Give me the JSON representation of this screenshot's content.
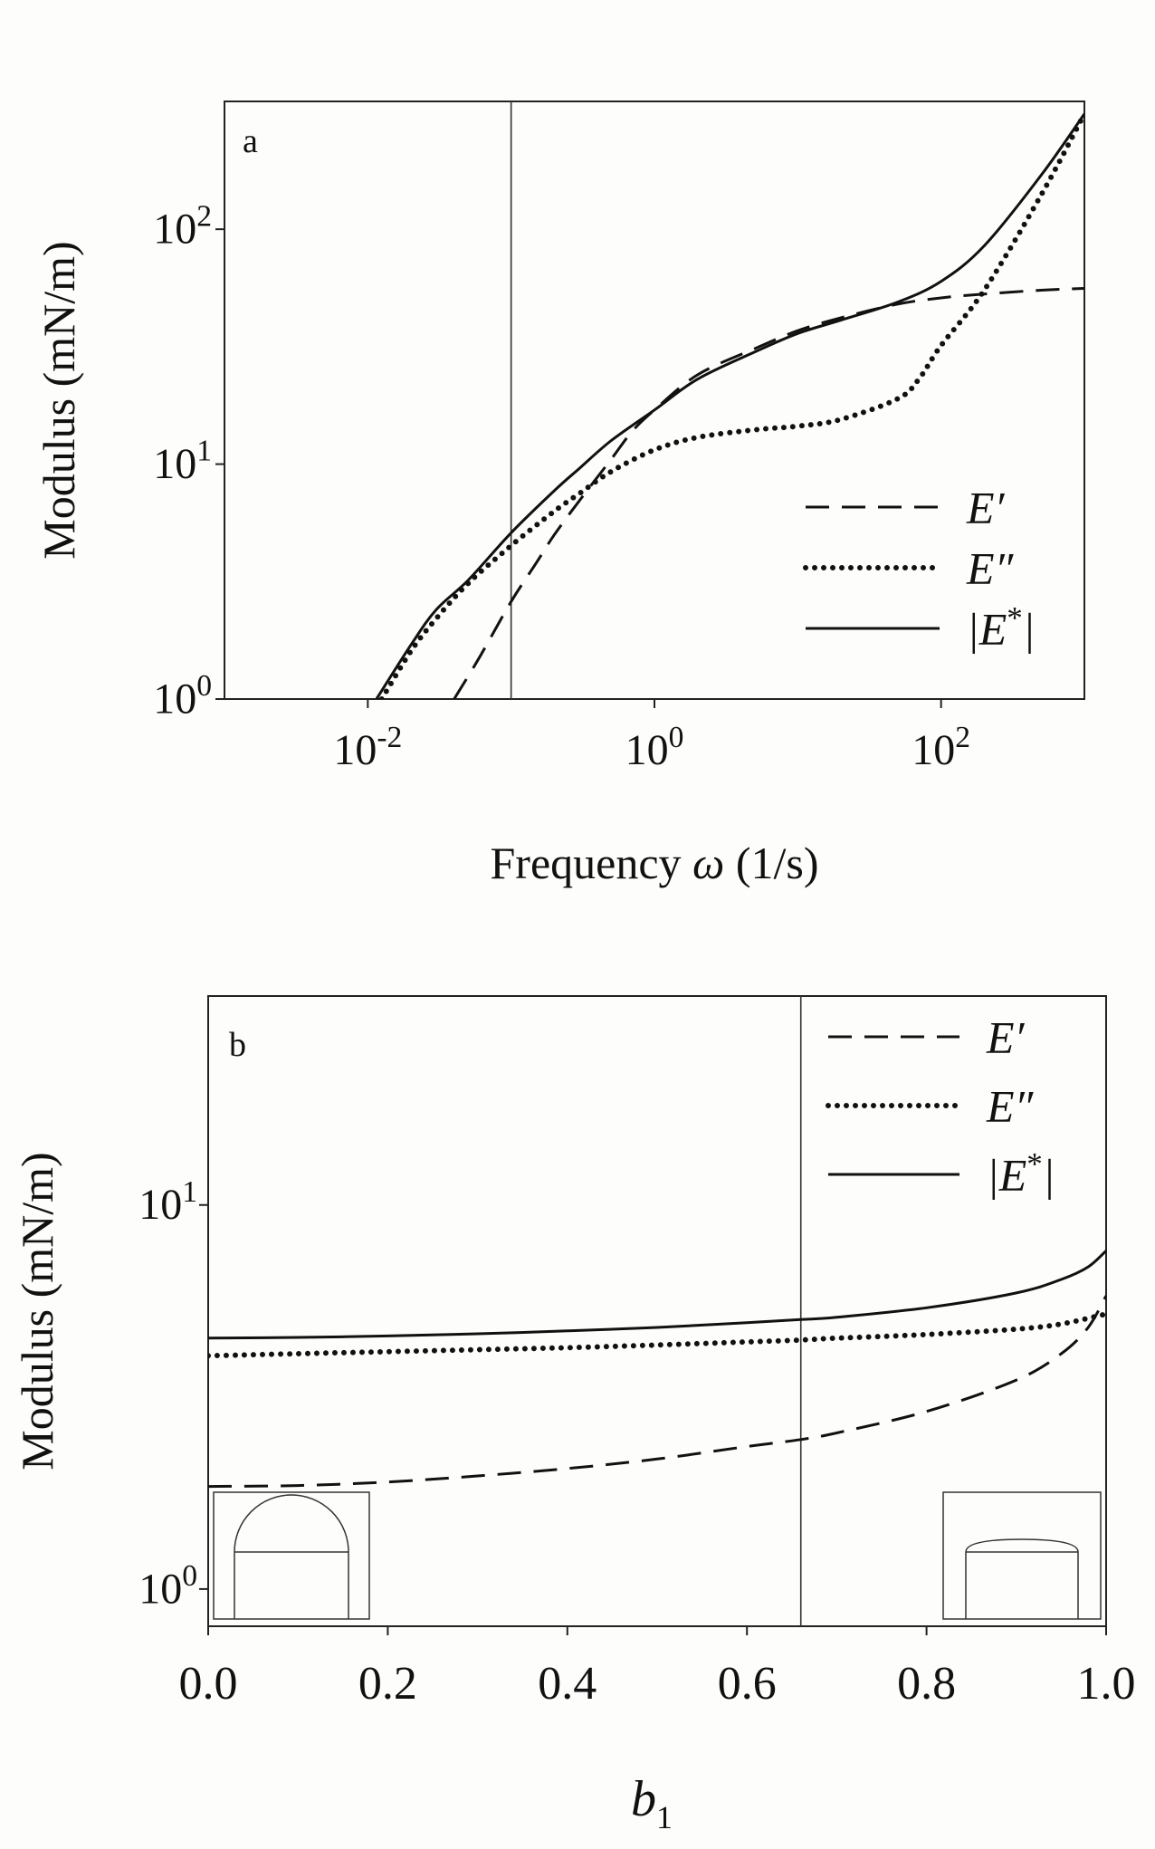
{
  "chart_data": [
    {
      "panel_label": "a",
      "type": "line",
      "xscale": "log",
      "yscale": "log",
      "xlim": [
        0.001,
        1000
      ],
      "ylim": [
        1,
        350
      ],
      "xlabel_prefix": "Frequency ",
      "xlabel_symbol": "ω",
      "xlabel_suffix": " (1/s)",
      "ylabel": "Modulus (mN/m)",
      "xticks": [
        {
          "value": 0.01,
          "base": "10",
          "exp": "-2"
        },
        {
          "value": 1,
          "base": "10",
          "exp": "0"
        },
        {
          "value": 100,
          "base": "10",
          "exp": "2"
        }
      ],
      "yticks": [
        {
          "value": 1,
          "base": "10",
          "exp": "0"
        },
        {
          "value": 10,
          "base": "10",
          "exp": "1"
        },
        {
          "value": 100,
          "base": "10",
          "exp": "2"
        }
      ],
      "vline_x": 0.1,
      "legend_position": "lower-right",
      "series": [
        {
          "name": "E′",
          "style": "dashed",
          "x": [
            0.04,
            0.06,
            0.1,
            0.15,
            0.2,
            0.3,
            0.5,
            0.7,
            1,
            2,
            5,
            10,
            20,
            50,
            100,
            200,
            500,
            1000
          ],
          "y": [
            1.0,
            1.5,
            2.6,
            3.8,
            5.0,
            7.0,
            10.5,
            13.8,
            17.0,
            24.0,
            31.0,
            37.0,
            42.0,
            48.0,
            51.0,
            53.0,
            55.0,
            56.0
          ]
        },
        {
          "name": "E″",
          "style": "dotted",
          "x": [
            0.0125,
            0.02,
            0.03,
            0.05,
            0.1,
            0.2,
            0.3,
            0.5,
            1,
            2,
            5,
            10,
            20,
            50,
            70,
            100,
            200,
            500,
            1000
          ],
          "y": [
            1.0,
            1.6,
            2.2,
            3.1,
            4.5,
            6.3,
            7.5,
            9.3,
            11.5,
            13.0,
            14.0,
            14.5,
            15.5,
            19.0,
            23.0,
            32.0,
            55.0,
            140.0,
            310.0
          ]
        },
        {
          "name": "|E*|",
          "style": "solid",
          "x": [
            0.0115,
            0.02,
            0.03,
            0.05,
            0.1,
            0.2,
            0.3,
            0.5,
            1,
            2,
            5,
            10,
            20,
            50,
            100,
            200,
            500,
            1000
          ],
          "y": [
            1.0,
            1.7,
            2.4,
            3.2,
            5.1,
            7.7,
            9.6,
            12.6,
            17.0,
            23.0,
            30.0,
            36.0,
            41.0,
            49.0,
            60.0,
            85.0,
            170.0,
            310.0
          ]
        }
      ]
    },
    {
      "panel_label": "b",
      "type": "line",
      "xscale": "linear",
      "yscale": "log",
      "xlim": [
        0,
        1
      ],
      "ylim": [
        0.8,
        35
      ],
      "xlabel_main": "b",
      "xlabel_sub": "1",
      "ylabel": "Modulus (mN/m)",
      "xticks": [
        "0.0",
        "0.2",
        "0.4",
        "0.6",
        "0.8",
        "1.0"
      ],
      "yticks": [
        {
          "value": 1,
          "base": "10",
          "exp": "0"
        },
        {
          "value": 10,
          "base": "10",
          "exp": "1"
        }
      ],
      "vline_x": 0.66,
      "legend_position": "top-right",
      "series": [
        {
          "name": "E′",
          "style": "dashed",
          "x": [
            0,
            0.1,
            0.2,
            0.3,
            0.4,
            0.5,
            0.6,
            0.66,
            0.7,
            0.8,
            0.9,
            0.95,
            0.98,
            1.0
          ],
          "y": [
            1.85,
            1.86,
            1.9,
            1.97,
            2.06,
            2.18,
            2.35,
            2.45,
            2.55,
            2.9,
            3.5,
            4.1,
            4.8,
            5.8
          ]
        },
        {
          "name": "E″",
          "style": "dotted",
          "x": [
            0,
            0.1,
            0.2,
            0.3,
            0.4,
            0.5,
            0.6,
            0.66,
            0.7,
            0.8,
            0.9,
            0.95,
            1.0
          ],
          "y": [
            4.05,
            4.1,
            4.15,
            4.2,
            4.25,
            4.32,
            4.4,
            4.45,
            4.5,
            4.6,
            4.75,
            4.9,
            5.2
          ]
        },
        {
          "name": "|E*|",
          "style": "solid",
          "x": [
            0,
            0.1,
            0.2,
            0.3,
            0.4,
            0.5,
            0.6,
            0.66,
            0.7,
            0.8,
            0.9,
            0.95,
            0.98,
            1.0
          ],
          "y": [
            4.5,
            4.52,
            4.56,
            4.62,
            4.7,
            4.8,
            4.94,
            5.03,
            5.1,
            5.4,
            5.9,
            6.4,
            6.9,
            7.6
          ]
        }
      ]
    }
  ]
}
